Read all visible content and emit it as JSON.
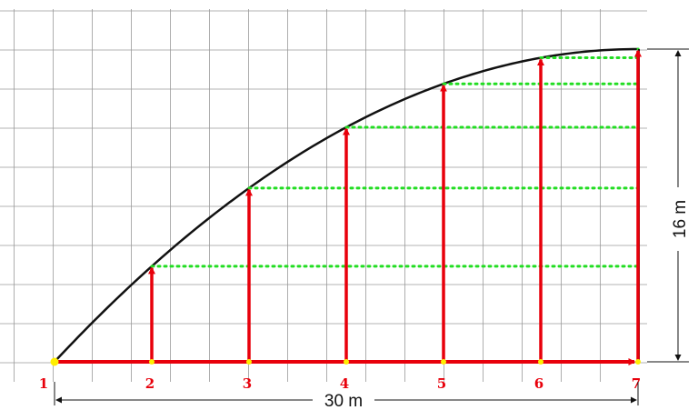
{
  "colors": {
    "grid": "#9a9a9a",
    "curve": "#111111",
    "ordinate": "#e8000b",
    "guide": "#22dd22",
    "point": "#ffee00",
    "dimension": "#111111"
  },
  "diagram": {
    "span": {
      "label": "30 m",
      "value": 30
    },
    "rise": {
      "label": "16 m",
      "value": 16
    },
    "points": [
      "1",
      "2",
      "3",
      "4",
      "5",
      "6",
      "7"
    ]
  }
}
